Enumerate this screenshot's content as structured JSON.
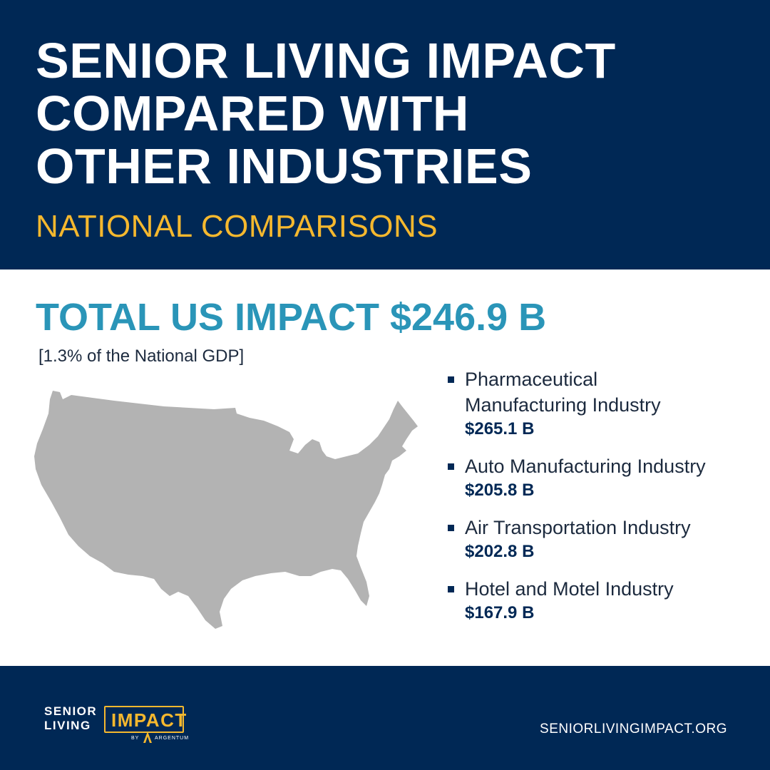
{
  "header": {
    "title_lines": [
      "SENIOR LIVING IMPACT",
      "COMPARED WITH",
      "OTHER INDUSTRIES"
    ],
    "subtitle": "NATIONAL COMPARISONS"
  },
  "total": {
    "label": "TOTAL US IMPACT $246.9 B",
    "gdp_note": "[1.3% of the National GDP]"
  },
  "comparisons": [
    {
      "label_lines": [
        "Pharmaceutical",
        "Manufacturing Industry"
      ],
      "value": "$265.1 B"
    },
    {
      "label_lines": [
        "Auto Manufacturing Industry"
      ],
      "value": "$205.8 B"
    },
    {
      "label_lines": [
        "Air Transportation Industry"
      ],
      "value": "$202.8 B"
    },
    {
      "label_lines": [
        "Hotel and Motel Industry"
      ],
      "value": "$167.9 B"
    }
  ],
  "footer": {
    "logo": {
      "word1": "SENIOR",
      "word2": "LIVING",
      "word3": "IMPACT",
      "by": "BY",
      "brand": "ARGENTUM"
    },
    "url": "SENIORLIVINGIMPACT.ORG"
  },
  "colors": {
    "navy": "#002855",
    "gold": "#f5b82e",
    "teal": "#2a95b8",
    "map_gray": "#b3b3b3"
  },
  "icons": {
    "map": "us-map-icon",
    "bullet": "square-bullet-icon",
    "logo_mark": "argentum-a-icon"
  }
}
